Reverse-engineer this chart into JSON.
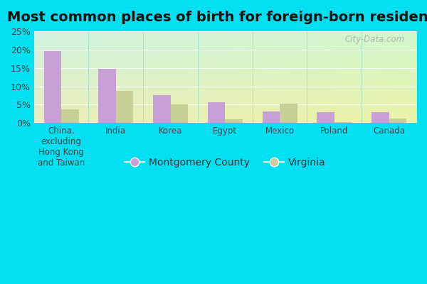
{
  "title": "Most common places of birth for foreign-born residents",
  "categories": [
    "China,\nexcluding\nHong Kong\nand Taiwan",
    "India",
    "Korea",
    "Egypt",
    "Mexico",
    "Poland",
    "Canada"
  ],
  "montgomery_values": [
    19.5,
    14.7,
    7.5,
    5.7,
    3.2,
    3.0,
    3.0
  ],
  "virginia_values": [
    3.8,
    8.7,
    5.0,
    1.0,
    5.2,
    0.3,
    1.2
  ],
  "montgomery_color": "#c8a0d8",
  "virginia_color": "#c8d098",
  "ylim": [
    0,
    25
  ],
  "yticks": [
    0,
    5,
    10,
    15,
    20,
    25
  ],
  "ytick_labels": [
    "0%",
    "5%",
    "10%",
    "15%",
    "20%",
    "25%"
  ],
  "legend_montgomery": "Montgomery County",
  "legend_virginia": "Virginia",
  "bar_width": 0.32,
  "background_outer": "#00e0f0",
  "watermark": "City-Data.com",
  "title_fontsize": 14,
  "tick_fontsize": 9,
  "legend_fontsize": 10
}
